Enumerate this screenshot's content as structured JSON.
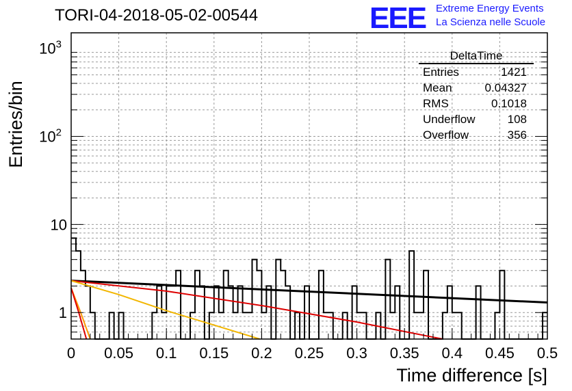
{
  "title": "TORI-04-2018-05-02-00544",
  "logo": {
    "mark": "EEE",
    "line1": "Extreme Energy Events",
    "line2": "La Scienza nelle Scuole",
    "color": "#1a1aff"
  },
  "stats": {
    "name": "DeltaTime",
    "rows": [
      {
        "label": "Entries",
        "value": "1421"
      },
      {
        "label": "Mean",
        "value": "0.04327"
      },
      {
        "label": "RMS",
        "value": "0.1018"
      },
      {
        "label": "Underflow",
        "value": "108"
      },
      {
        "label": "Overflow",
        "value": "356"
      }
    ]
  },
  "chart_data": {
    "type": "bar",
    "xlabel": "Time difference [s]",
    "ylabel": "Entries/bin",
    "xlim": [
      0,
      0.5
    ],
    "ylim": [
      0.5,
      1500
    ],
    "yscale": "log",
    "grid": true,
    "x_ticks": [
      "0",
      "0.05",
      "0.1",
      "0.15",
      "0.2",
      "0.25",
      "0.3",
      "0.35",
      "0.4",
      "0.45",
      "0.5"
    ],
    "y_ticks": [
      "1",
      "10",
      "10^2",
      "10^3"
    ],
    "bin_width": 0.005,
    "histogram_counts": [
      7,
      5,
      3,
      2,
      1,
      0,
      0,
      0,
      1,
      0,
      1,
      0,
      0,
      0,
      0,
      0,
      0,
      1,
      2,
      1,
      2,
      2,
      3,
      0,
      0,
      1,
      3,
      2,
      0,
      1,
      2,
      1,
      3,
      2,
      1,
      2,
      1,
      1,
      4,
      3,
      1,
      2,
      0,
      4,
      3,
      2,
      0,
      1,
      0,
      2,
      0,
      0,
      3,
      1,
      1,
      0,
      0,
      1,
      0,
      2,
      1,
      1,
      0,
      0,
      1,
      0,
      4,
      1,
      2,
      0,
      0,
      5,
      1,
      1,
      3,
      0,
      0,
      0,
      1,
      2,
      1,
      1,
      0,
      0,
      0,
      2,
      0,
      0,
      0,
      1,
      3,
      0,
      0,
      0,
      0,
      0,
      0,
      0,
      0,
      1
    ],
    "series": [
      {
        "name": "",
        "color": "#000000",
        "x": [
          0,
          0.5
        ],
        "y": [
          2.3,
          1.3
        ]
      },
      {
        "name": "",
        "color": "#dd0000",
        "x": [
          0,
          0.1,
          0.2,
          0.3,
          0.39
        ],
        "y": [
          2.3,
          1.75,
          1.2,
          0.78,
          0.5
        ]
      },
      {
        "name": "",
        "color": "#f2b600",
        "x": [
          0,
          0.05,
          0.1,
          0.15,
          0.198
        ],
        "y": [
          2.3,
          1.6,
          1.05,
          0.72,
          0.5
        ]
      },
      {
        "name": "",
        "color": "#ff9900",
        "x": [
          0,
          0.01,
          0.02
        ],
        "y": [
          1.9,
          1.0,
          0.5
        ]
      },
      {
        "name": "",
        "color": "#dd0000",
        "x": [
          0,
          0.008,
          0.016
        ],
        "y": [
          1.9,
          1.0,
          0.5
        ]
      }
    ]
  }
}
